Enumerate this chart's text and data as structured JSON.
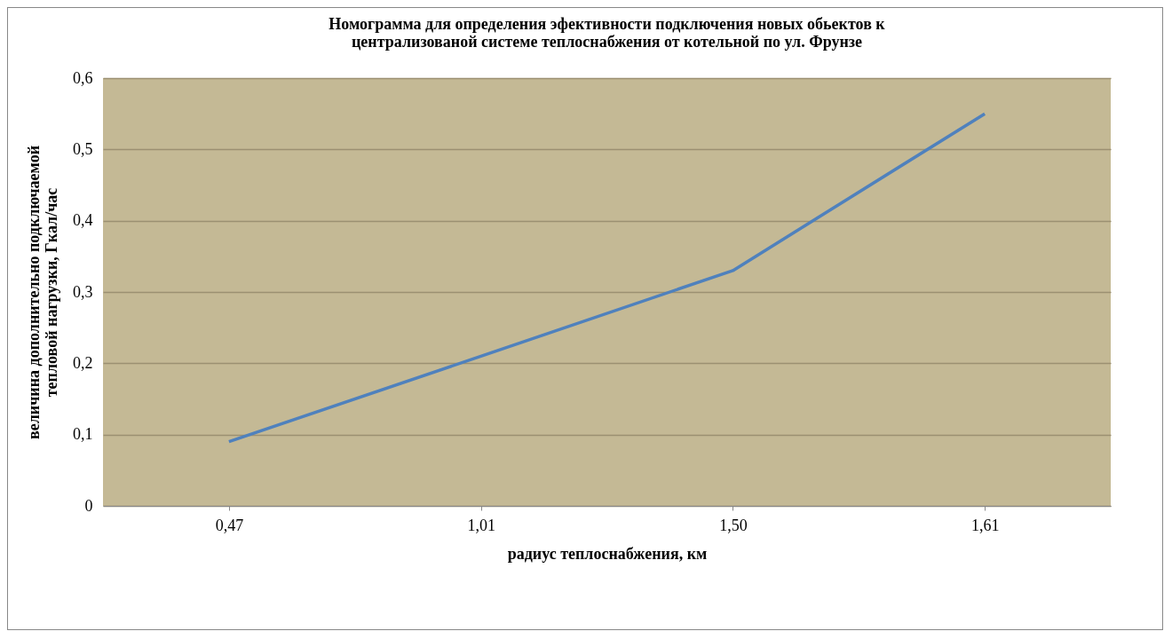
{
  "chart_data": {
    "type": "line",
    "title": "Номограмма для определения эфективности подключения новых обьектов к\nцентрализованой системе теплоснабжения от котельной по ул. Фрунзе",
    "xlabel": "радиус теплоснабжения, км",
    "ylabel": "величина дополнительно подключаемой\nтепловой нагрузки, Гкал/час",
    "categories": [
      "0,47",
      "1,01",
      "1,50",
      "1,61"
    ],
    "series": [
      {
        "color": "#4f81bd",
        "values": [
          0.09,
          0.21,
          0.33,
          0.55
        ]
      }
    ],
    "ylim": [
      0,
      0.6
    ],
    "yticks": [
      0,
      {
        "value": 0.1,
        "label": "0,1"
      },
      {
        "value": 0.2,
        "label": "0,2"
      },
      {
        "value": 0.3,
        "label": "0,3"
      },
      {
        "value": 0.4,
        "label": "0,4"
      },
      {
        "value": 0.5,
        "label": "0,5"
      },
      {
        "value": 0.6,
        "label": "0,6"
      }
    ],
    "grid": "y",
    "legend": false,
    "marker": "none",
    "line_style": "solid"
  }
}
